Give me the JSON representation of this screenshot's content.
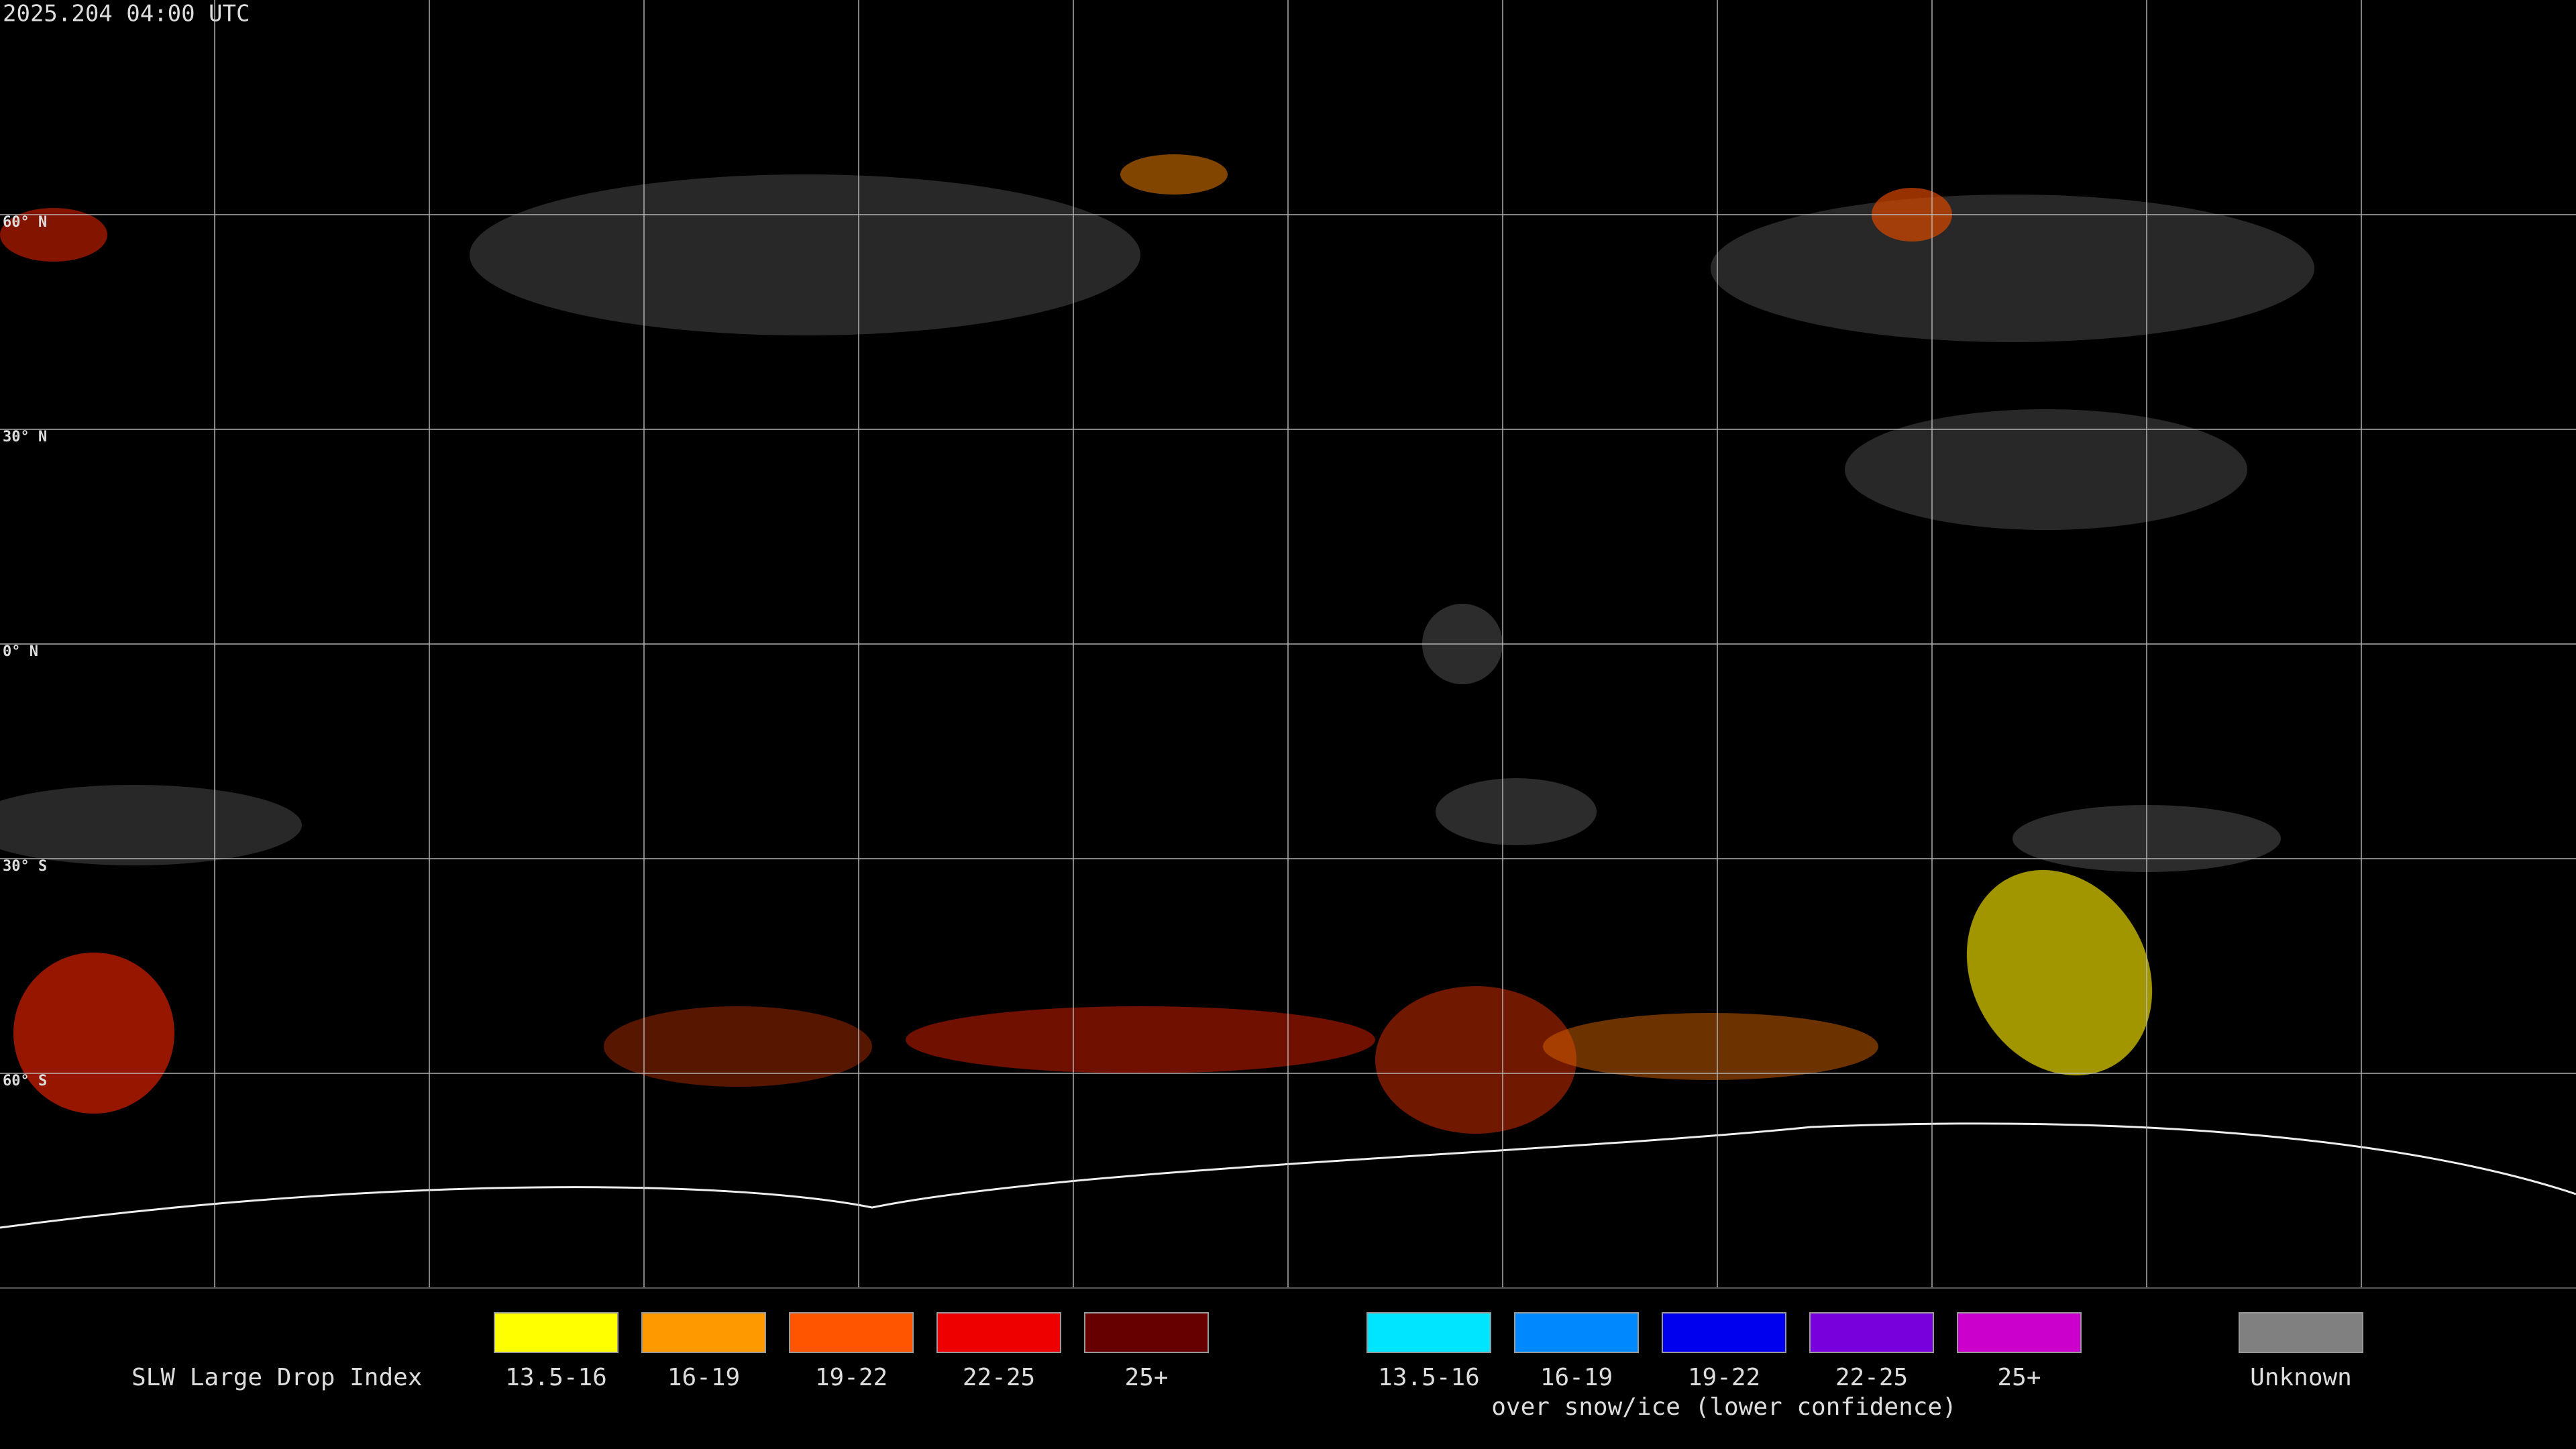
{
  "timestamp": "2025.204 04:00 UTC",
  "lat_labels": [
    "60° N",
    "30° N",
    "0° N",
    "30° S",
    "60° S"
  ],
  "legend": {
    "title": "SLW Large Drop Index",
    "groups": [
      {
        "items": [
          {
            "label": "13.5-16",
            "color": "#ffff00"
          },
          {
            "label": "16-19",
            "color": "#ff9900"
          },
          {
            "label": "19-22",
            "color": "#ff5500"
          },
          {
            "label": "22-25",
            "color": "#ee0000"
          },
          {
            "label": "25+",
            "color": "#660000"
          }
        ]
      },
      {
        "caption": "over snow/ice (lower confidence)",
        "items": [
          {
            "label": "13.5-16",
            "color": "#00e5ff"
          },
          {
            "label": "16-19",
            "color": "#0088ff"
          },
          {
            "label": "19-22",
            "color": "#0000ee"
          },
          {
            "label": "22-25",
            "color": "#7700dd"
          },
          {
            "label": "25+",
            "color": "#cc00cc"
          }
        ]
      },
      {
        "items": [
          {
            "label": "Unknown",
            "color": "#808080"
          }
        ]
      }
    ]
  }
}
